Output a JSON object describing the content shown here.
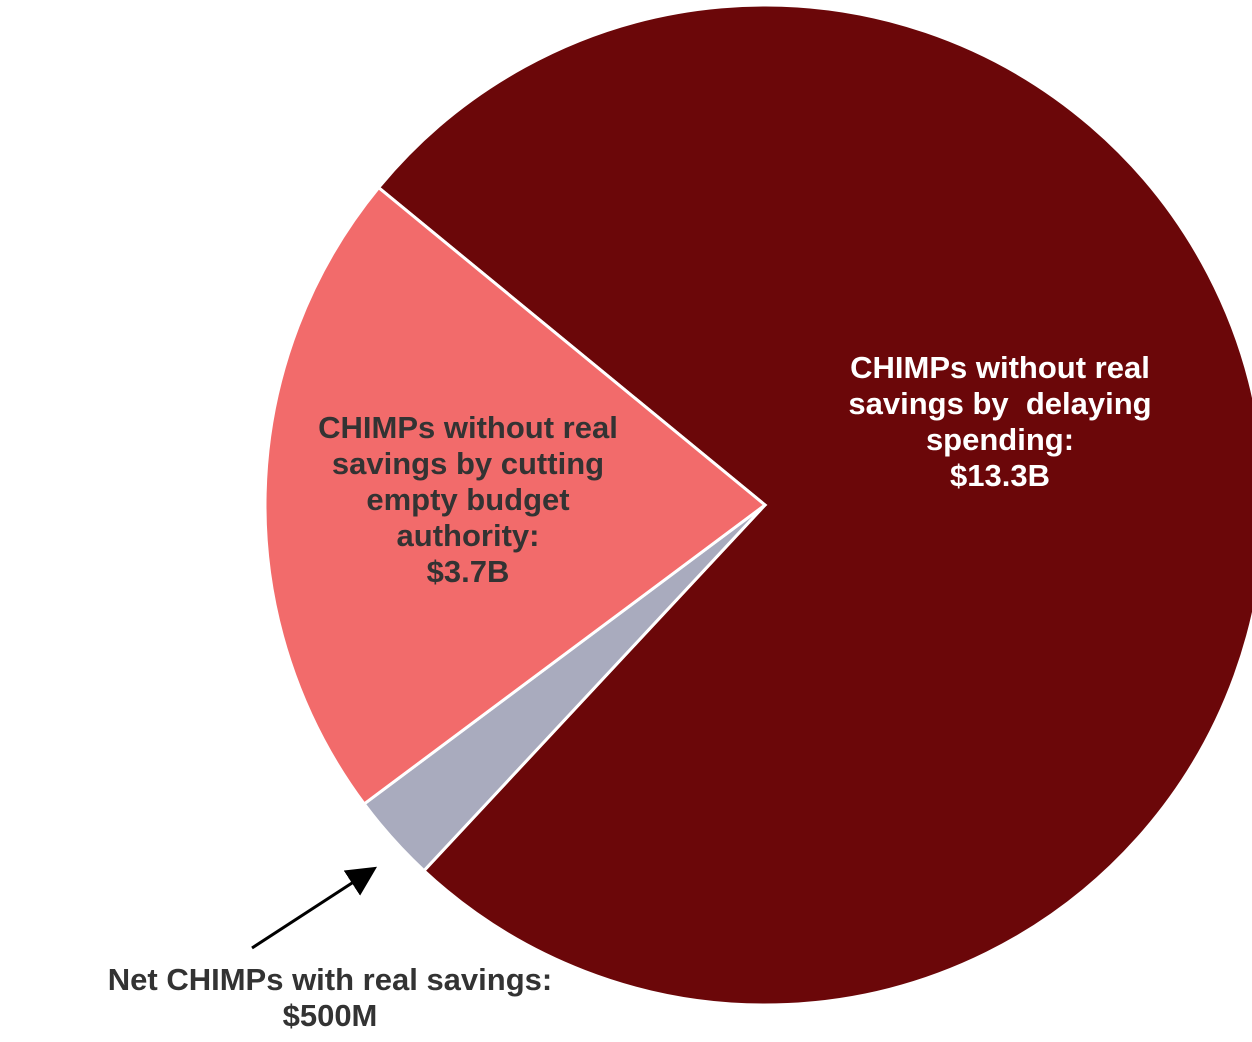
{
  "chart_data": {
    "type": "pie",
    "categories": [
      "CHIMPs without real savings by  delaying spending:",
      "Net CHIMPs with real savings:",
      "CHIMPs without real savings by cutting empty budget authority:"
    ],
    "values": [
      13.3,
      0.5,
      3.7
    ],
    "value_labels": [
      "$13.3B",
      "$500M",
      "$3.7B"
    ],
    "colors": [
      "#6b0709",
      "#a9abbe",
      "#f26b6b"
    ]
  }
}
